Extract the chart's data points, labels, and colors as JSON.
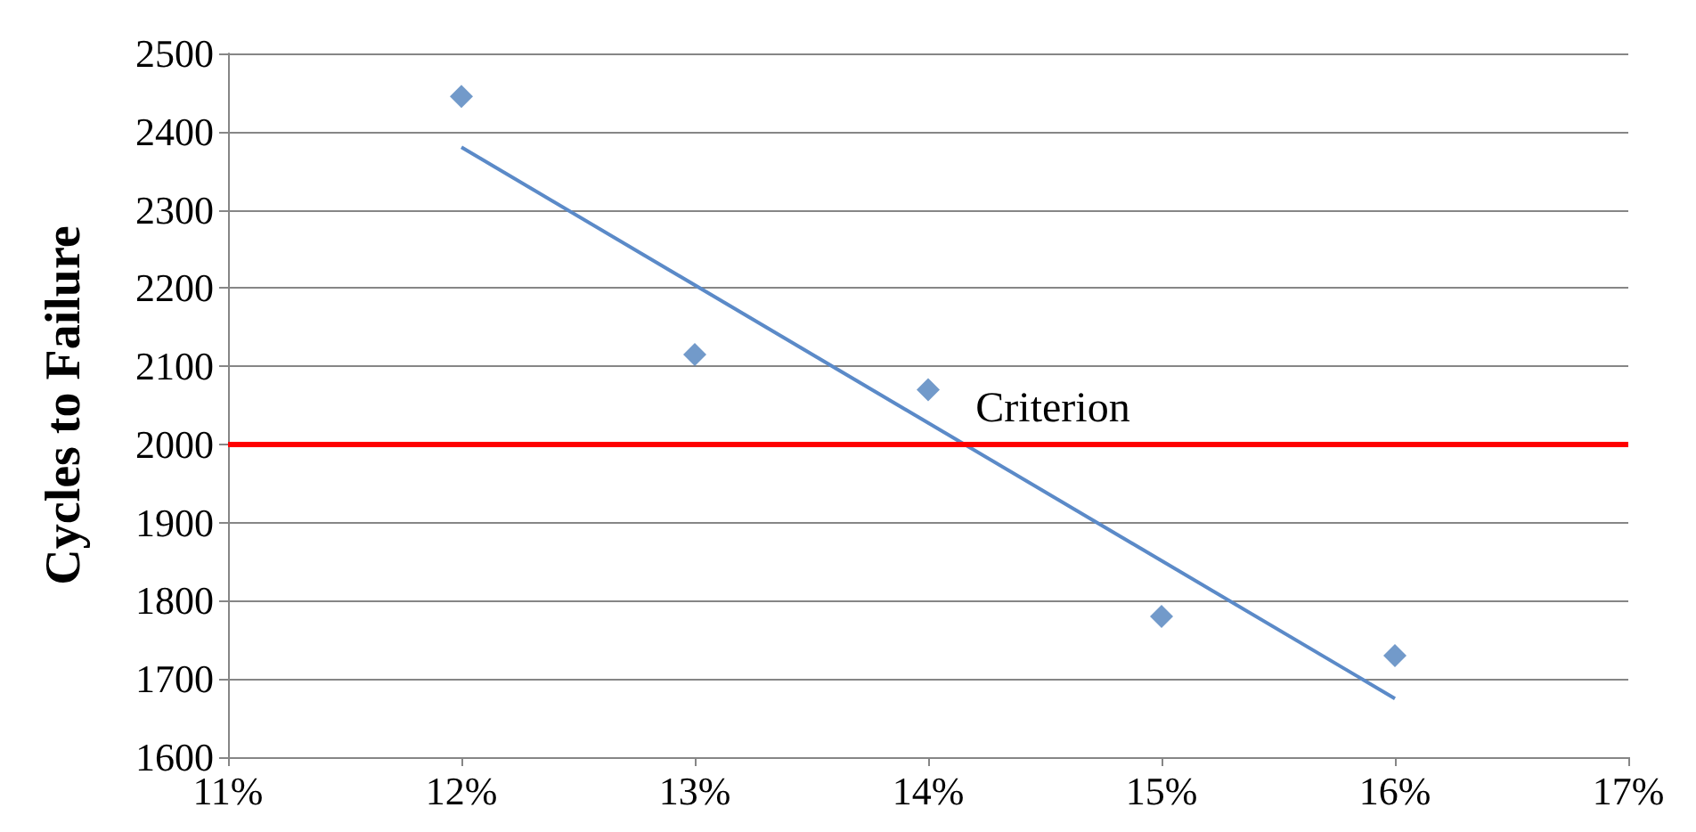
{
  "chart_data": {
    "type": "scatter",
    "ylabel": "Cycles to Failure",
    "series": [
      {
        "color": "#4f81bd",
        "marker": "diamond",
        "x": [
          12,
          13,
          14,
          15,
          16
        ],
        "values": [
          2445,
          2115,
          2070,
          1780,
          1730
        ]
      },
      {
        "type": "line",
        "color": "#5b8ac8",
        "marker": "none",
        "x": [
          12,
          16
        ],
        "values": [
          2380,
          1675
        ]
      }
    ],
    "xlim": [
      11,
      17
    ],
    "xticks": [
      {
        "value": 11,
        "label": "11%"
      },
      {
        "value": 12,
        "label": "12%"
      },
      {
        "value": 13,
        "label": "13%"
      },
      {
        "value": 14,
        "label": "14%"
      },
      {
        "value": 15,
        "label": "15%"
      },
      {
        "value": 16,
        "label": "16%"
      },
      {
        "value": 17,
        "label": "17%"
      }
    ],
    "ylim": [
      1600,
      2500
    ],
    "yticks": [
      1600,
      1700,
      1800,
      1900,
      2000,
      2100,
      2200,
      2300,
      2400,
      2500
    ],
    "ref_lines": [
      {
        "axis": "y",
        "value": 2000,
        "label": "Criterion",
        "color": "#ff0000"
      }
    ],
    "grid": "y"
  }
}
